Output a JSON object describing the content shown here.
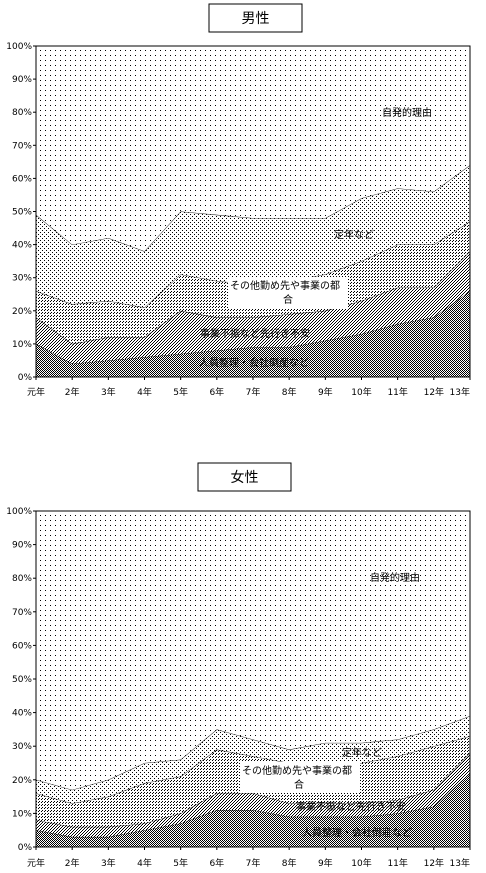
{
  "chart_data": [
    {
      "type": "area",
      "title": "男性",
      "categories": [
        "元年",
        "2年",
        "3年",
        "4年",
        "5年",
        "6年",
        "7年",
        "8年",
        "9年",
        "10年",
        "11年",
        "12年",
        "13年"
      ],
      "ylim": [
        0,
        100
      ],
      "y_ticks": [
        "0%",
        "10%",
        "20%",
        "30%",
        "40%",
        "50%",
        "60%",
        "70%",
        "80%",
        "90%",
        "100%"
      ],
      "stacked": true,
      "series": [
        {
          "name": "人員整理・会社倒産など",
          "values": [
            10,
            4,
            5,
            6,
            7,
            8,
            9,
            9,
            11,
            13,
            16,
            18,
            26
          ]
        },
        {
          "name": "事業不振など先行き不安",
          "values": [
            8,
            6,
            7,
            6,
            13,
            10,
            9,
            10,
            9,
            10,
            11,
            9,
            12
          ]
        },
        {
          "name": "その他勤め先や事業の都合",
          "values": [
            8,
            12,
            11,
            9,
            11,
            11,
            10,
            10,
            11,
            12,
            13,
            13,
            9
          ]
        },
        {
          "name": "定年など",
          "values": [
            23,
            18,
            19,
            17,
            19,
            20,
            20,
            19,
            17,
            19,
            17,
            16,
            17
          ]
        },
        {
          "name": "自発的理由",
          "values": [
            51,
            60,
            58,
            62,
            50,
            51,
            52,
            52,
            52,
            46,
            43,
            44,
            36
          ]
        }
      ]
    },
    {
      "type": "area",
      "title": "女性",
      "categories": [
        "元年",
        "2年",
        "3年",
        "4年",
        "5年",
        "6年",
        "7年",
        "8年",
        "9年",
        "10年",
        "11年",
        "12年",
        "13年"
      ],
      "ylim": [
        0,
        100
      ],
      "y_ticks": [
        "0%",
        "10%",
        "20%",
        "30%",
        "40%",
        "50%",
        "60%",
        "70%",
        "80%",
        "90%",
        "100%"
      ],
      "stacked": true,
      "series": [
        {
          "name": "人員整理・会社倒産など",
          "values": [
            5,
            3,
            3,
            5,
            7,
            11,
            11,
            9,
            9,
            9,
            10,
            12,
            22
          ]
        },
        {
          "name": "事業不振など先行き不安",
          "values": [
            3,
            3,
            3,
            2,
            3,
            5,
            5,
            4,
            4,
            4,
            4,
            5,
            6
          ]
        },
        {
          "name": "その他勤め先や事業の都合",
          "values": [
            8,
            7,
            9,
            12,
            11,
            13,
            11,
            12,
            12,
            12,
            13,
            13,
            5
          ]
        },
        {
          "name": "定年など",
          "values": [
            4,
            4,
            5,
            6,
            5,
            6,
            5,
            4,
            6,
            6,
            5,
            5,
            6
          ]
        },
        {
          "name": "自発的理由",
          "values": [
            80,
            83,
            80,
            75,
            74,
            65,
            68,
            71,
            69,
            69,
            68,
            65,
            61
          ]
        }
      ]
    }
  ]
}
